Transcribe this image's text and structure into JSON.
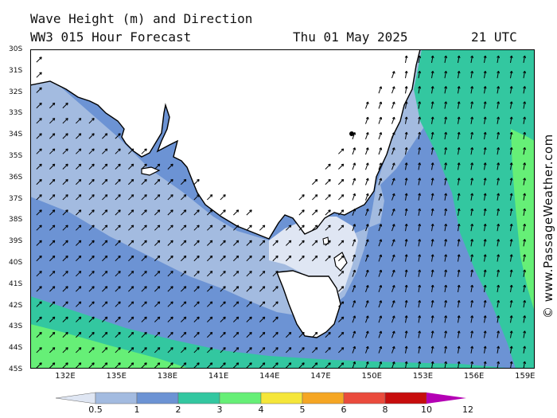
{
  "header": {
    "title": "Wave Height (m) and Direction",
    "subtitle": "WW3 015 Hour Forecast",
    "date": "Thu 01 May 2025",
    "time": "21 UTC"
  },
  "credit": "© www.PassageWeather.com",
  "latitudes": [
    "30S",
    "31S",
    "32S",
    "33S",
    "34S",
    "35S",
    "36S",
    "37S",
    "38S",
    "39S",
    "40S",
    "41S",
    "42S",
    "43S",
    "44S",
    "45S"
  ],
  "longitudes": [
    "132E",
    "135E",
    "138E",
    "141E",
    "144E",
    "147E",
    "150E",
    "153E",
    "156E",
    "159E"
  ],
  "legend": {
    "labels": [
      "0.5",
      "1",
      "2",
      "3",
      "4",
      "5",
      "6",
      "8",
      "10",
      "12"
    ],
    "colors": [
      "#dfe6f3",
      "#a3bbe0",
      "#6c93d4",
      "#33c7a0",
      "#66ef77",
      "#f5e63a",
      "#f5a623",
      "#ea4b3c",
      "#c70d0d",
      "#b400b4"
    ]
  },
  "wave_direction": "northeast"
}
